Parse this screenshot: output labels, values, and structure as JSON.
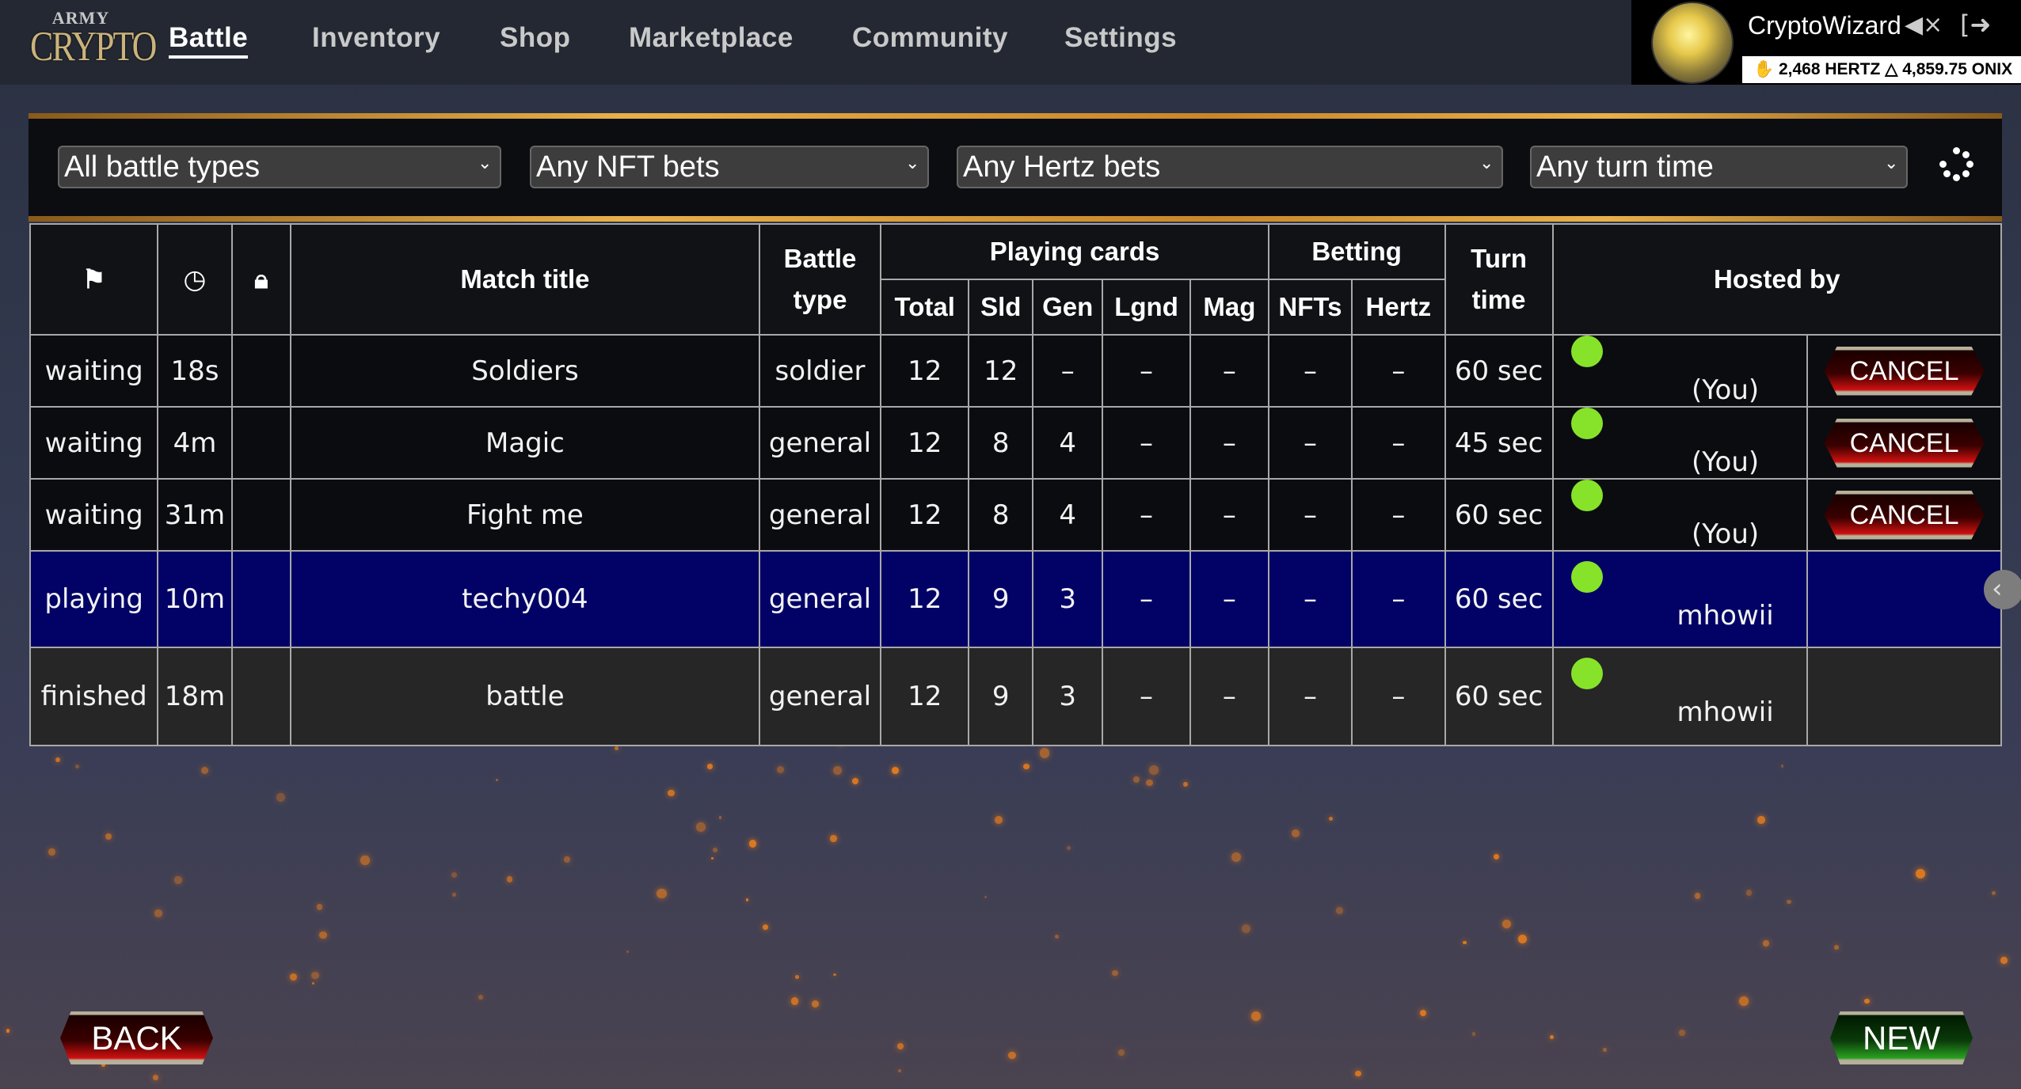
{
  "logo": {
    "line1": "ARMY",
    "line2": "CRYPTO"
  },
  "nav": [
    {
      "label": "Battle",
      "active": true
    },
    {
      "label": "Inventory"
    },
    {
      "label": "Shop"
    },
    {
      "label": "Marketplace"
    },
    {
      "label": "Community"
    },
    {
      "label": "Settings"
    }
  ],
  "user": {
    "name": "CryptoWizard",
    "hertz": "2,468 HERTZ",
    "onix": "4,859.75 ONIX",
    "mute_icon": "speaker-muted-icon",
    "logout_icon": "logout-icon"
  },
  "filters": [
    {
      "value": "All battle types"
    },
    {
      "value": "Any NFT bets"
    },
    {
      "value": "Any Hertz bets"
    },
    {
      "value": "Any turn time"
    }
  ],
  "table": {
    "headers": {
      "status_icon": "flag-icon",
      "time_icon": "clock-icon",
      "lock_icon": "lock-icon",
      "match_title": "Match title",
      "battle_type": "Battle type",
      "playing_cards": "Playing cards",
      "betting": "Betting",
      "turn_time": "Turn time",
      "hosted_by": "Hosted by",
      "sub": [
        "Total",
        "Sld",
        "Gen",
        "Lgnd",
        "Mag",
        "NFTs",
        "Hertz"
      ]
    },
    "rows": [
      {
        "status": "waiting",
        "age": "18s",
        "title": "Soldiers",
        "type": "soldier",
        "total": "12",
        "sld": "12",
        "gen": "–",
        "lgnd": "–",
        "mag": "–",
        "nfts": "–",
        "hertz": "–",
        "turn": "60 sec",
        "host": "(You)",
        "action": "CANCEL",
        "state": "normal"
      },
      {
        "status": "waiting",
        "age": "4m",
        "title": "Magic",
        "type": "general",
        "total": "12",
        "sld": "8",
        "gen": "4",
        "lgnd": "–",
        "mag": "–",
        "nfts": "–",
        "hertz": "–",
        "turn": "45 sec",
        "host": "(You)",
        "action": "CANCEL",
        "state": "normal"
      },
      {
        "status": "waiting",
        "age": "31m",
        "title": "Fight me",
        "type": "general",
        "total": "12",
        "sld": "8",
        "gen": "4",
        "lgnd": "–",
        "mag": "–",
        "nfts": "–",
        "hertz": "–",
        "turn": "60 sec",
        "host": "(You)",
        "action": "CANCEL",
        "state": "normal"
      },
      {
        "status": "playing",
        "age": "10m",
        "title": "techy004",
        "type": "general",
        "total": "12",
        "sld": "9",
        "gen": "3",
        "lgnd": "–",
        "mag": "–",
        "nfts": "–",
        "hertz": "–",
        "turn": "60 sec",
        "host": "mhowii",
        "action": null,
        "state": "playing"
      },
      {
        "status": "finished",
        "age": "18m",
        "title": "battle",
        "type": "general",
        "total": "12",
        "sld": "9",
        "gen": "3",
        "lgnd": "–",
        "mag": "–",
        "nfts": "–",
        "hertz": "–",
        "turn": "60 sec",
        "host": "mhowii",
        "action": null,
        "state": "finished"
      }
    ]
  },
  "buttons": {
    "back": "BACK",
    "new": "NEW"
  },
  "colors": {
    "online_dot": "#86e32a",
    "playing_row": "#010166",
    "gold": "#e8b04a",
    "cancel_red": "#d01010",
    "new_green": "#2aa020"
  }
}
